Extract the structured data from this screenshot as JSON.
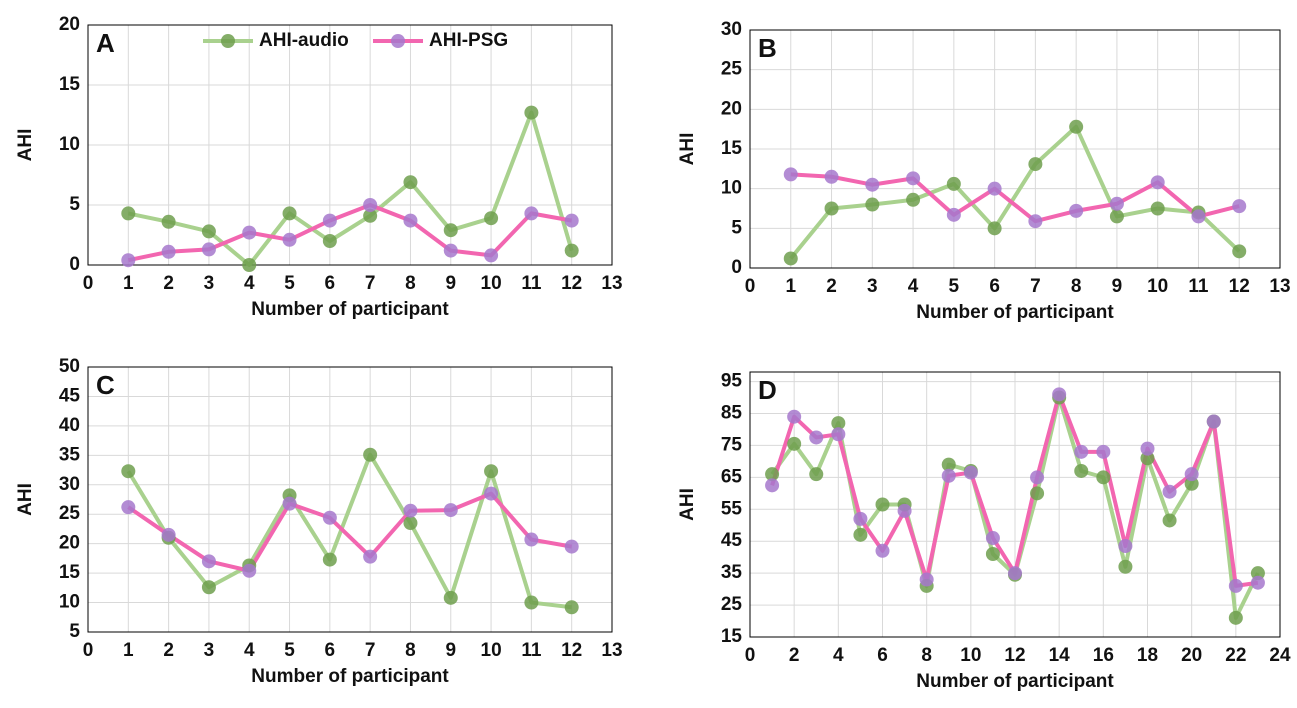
{
  "chart_data": [
    {
      "type": "line",
      "title": "A",
      "x_label": "Number of participant",
      "y_label": "AHI",
      "xlim": [
        0,
        13
      ],
      "xticks": [
        0,
        1,
        2,
        3,
        4,
        5,
        6,
        7,
        8,
        9,
        10,
        11,
        12,
        13
      ],
      "ylim": [
        0,
        20
      ],
      "yticks": [
        0,
        5,
        10,
        15,
        20
      ],
      "grid": true,
      "legend": "top",
      "x": [
        1,
        2,
        3,
        4,
        5,
        6,
        7,
        8,
        9,
        10,
        11,
        12
      ],
      "series": [
        {
          "name": "AHI-audio",
          "color": "#a9d18e",
          "marker_color": "#6e9f4e",
          "values": [
            4.3,
            3.6,
            2.8,
            0,
            4.3,
            2.0,
            4.1,
            6.9,
            2.9,
            3.9,
            12.7,
            1.2
          ]
        },
        {
          "name": "AHI-PSG",
          "color": "#f266b0",
          "marker_color": "#a678cc",
          "values": [
            0.4,
            1.1,
            1.3,
            2.7,
            2.1,
            3.7,
            5.0,
            3.7,
            1.2,
            0.8,
            4.3,
            3.7
          ]
        }
      ]
    },
    {
      "type": "line",
      "title": "B",
      "x_label": "Number of participant",
      "y_label": "AHI",
      "xlim": [
        0,
        13
      ],
      "xticks": [
        0,
        1,
        2,
        3,
        4,
        5,
        6,
        7,
        8,
        9,
        10,
        11,
        12,
        13
      ],
      "ylim": [
        0,
        30
      ],
      "yticks": [
        0,
        5,
        10,
        15,
        20,
        25,
        30
      ],
      "grid": true,
      "x": [
        1,
        2,
        3,
        4,
        5,
        6,
        7,
        8,
        9,
        10,
        11,
        12
      ],
      "series": [
        {
          "color": "#a9d18e",
          "marker_color": "#6e9f4e",
          "values": [
            1.2,
            7.5,
            8.0,
            8.6,
            10.6,
            5.0,
            13.1,
            17.8,
            6.5,
            7.5,
            7.0,
            2.1
          ]
        },
        {
          "color": "#f266b0",
          "marker_color": "#a678cc",
          "values": [
            11.8,
            11.5,
            10.5,
            11.3,
            6.7,
            10.0,
            5.9,
            7.2,
            8.1,
            10.8,
            6.5,
            7.8
          ]
        }
      ]
    },
    {
      "type": "line",
      "title": "C",
      "x_label": "Number of participant",
      "y_label": "AHI",
      "xlim": [
        0,
        13
      ],
      "xticks": [
        0,
        1,
        2,
        3,
        4,
        5,
        6,
        7,
        8,
        9,
        10,
        11,
        12,
        13
      ],
      "ylim": [
        5,
        50
      ],
      "yticks": [
        5,
        10,
        15,
        20,
        25,
        30,
        35,
        40,
        45,
        50
      ],
      "grid": true,
      "x": [
        1,
        2,
        3,
        4,
        5,
        6,
        7,
        8,
        9,
        10,
        11,
        12
      ],
      "series": [
        {
          "color": "#a9d18e",
          "marker_color": "#6e9f4e",
          "values": [
            32.3,
            21.0,
            12.6,
            16.3,
            28.2,
            17.3,
            35.1,
            23.5,
            10.8,
            32.3,
            10.0,
            9.2
          ]
        },
        {
          "color": "#f266b0",
          "marker_color": "#a678cc",
          "values": [
            26.2,
            21.5,
            17.0,
            15.4,
            26.8,
            24.4,
            17.8,
            25.6,
            25.7,
            28.5,
            20.7,
            19.5
          ]
        }
      ]
    },
    {
      "type": "line",
      "title": "D",
      "x_label": "Number of participant",
      "y_label": "AHI",
      "xlim": [
        0,
        24
      ],
      "xticks": [
        0,
        2,
        4,
        6,
        8,
        10,
        12,
        14,
        16,
        18,
        20,
        22,
        24
      ],
      "ylim": [
        15,
        98
      ],
      "yticks": [
        15,
        25,
        35,
        45,
        55,
        65,
        75,
        85,
        95
      ],
      "grid": true,
      "x": [
        1,
        2,
        3,
        4,
        5,
        6,
        7,
        8,
        9,
        10,
        11,
        12,
        13,
        14,
        15,
        16,
        17,
        18,
        19,
        20,
        21,
        22,
        23
      ],
      "series": [
        {
          "color": "#a9d18e",
          "marker_color": "#6e9f4e",
          "values": [
            66,
            75.5,
            66,
            82,
            47,
            56.5,
            56.5,
            31,
            69,
            67,
            41,
            34.5,
            60,
            90,
            67,
            65,
            37,
            71,
            51.5,
            63,
            82.5,
            21,
            35
          ]
        },
        {
          "color": "#f266b0",
          "marker_color": "#a678cc",
          "values": [
            62.5,
            84,
            77.5,
            78.5,
            52,
            42,
            54.5,
            33,
            65.5,
            66.5,
            46,
            35,
            65,
            91,
            73,
            73,
            43.5,
            74,
            60.5,
            66,
            82.5,
            31,
            32
          ]
        }
      ]
    }
  ]
}
